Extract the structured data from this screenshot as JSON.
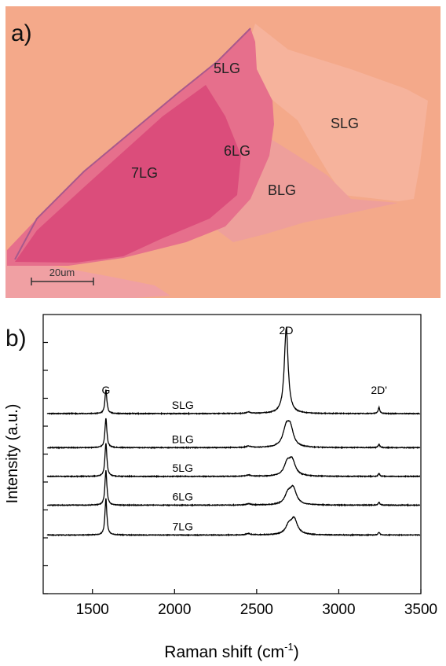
{
  "panel_a": {
    "panel_label": "a)",
    "region_labels": [
      "5LG",
      "SLG",
      "6LG",
      "7LG",
      "BLG"
    ],
    "scale_bar_label": "20um",
    "colors": {
      "substrate": "#f4a98a",
      "thin_layers": "#f6b39c",
      "bilayer": "#ee9f9b",
      "few_layer": "#e66f8c",
      "thick_layer": "#db4d7b"
    }
  },
  "chart_data": {
    "type": "line",
    "panel_label": "b)",
    "xlabel": "Raman shift (cm",
    "xlabel_sup": "-1",
    "xlabel_close": ")",
    "ylabel": "Intensity (a.u.)",
    "xlim": [
      1200,
      3500
    ],
    "x_ticks": [
      1500,
      2000,
      2500,
      3000,
      3500
    ],
    "x_tick_labels": [
      "1500",
      "2000",
      "2500",
      "3000",
      "3500"
    ],
    "y_ticks": [
      0,
      1,
      2,
      3,
      4,
      5,
      6,
      7,
      8,
      9
    ],
    "y_tick_labels": [],
    "ylim": [
      0,
      10
    ],
    "grid": false,
    "legend": "none",
    "line_color": "#000000",
    "peak_labels": [
      {
        "text": "G",
        "x": 1582,
        "y": 7.15
      },
      {
        "text": "2D",
        "x": 2680,
        "y": 9.3
      },
      {
        "text": "2D'",
        "x": 3245,
        "y": 7.15
      }
    ],
    "series": [
      {
        "name": "SLG",
        "label_x": 2050,
        "baseline": 6.45,
        "peaks": [
          {
            "center": 1582,
            "height": 0.85,
            "width": 7
          },
          {
            "center": 2450,
            "height": 0.05,
            "width": 15
          },
          {
            "center": 2680,
            "height": 3.05,
            "width": 14
          },
          {
            "center": 3245,
            "height": 0.22,
            "width": 6
          }
        ]
      },
      {
        "name": "BLG",
        "label_x": 2050,
        "baseline": 5.23,
        "peaks": [
          {
            "center": 1582,
            "height": 1.05,
            "width": 7
          },
          {
            "center": 2450,
            "height": 0.05,
            "width": 15
          },
          {
            "center": 2680,
            "height": 0.65,
            "width": 24
          },
          {
            "center": 2705,
            "height": 0.6,
            "width": 22
          },
          {
            "center": 3245,
            "height": 0.12,
            "width": 6
          }
        ]
      },
      {
        "name": "5LG",
        "label_x": 2050,
        "baseline": 4.2,
        "peaks": [
          {
            "center": 1582,
            "height": 1.2,
            "width": 7
          },
          {
            "center": 2450,
            "height": 0.05,
            "width": 15
          },
          {
            "center": 2685,
            "height": 0.4,
            "width": 22
          },
          {
            "center": 2715,
            "height": 0.55,
            "width": 24
          },
          {
            "center": 3245,
            "height": 0.1,
            "width": 6
          }
        ]
      },
      {
        "name": "6LG",
        "label_x": 2050,
        "baseline": 3.17,
        "peaks": [
          {
            "center": 1582,
            "height": 1.25,
            "width": 7
          },
          {
            "center": 2450,
            "height": 0.05,
            "width": 15
          },
          {
            "center": 2690,
            "height": 0.35,
            "width": 22
          },
          {
            "center": 2722,
            "height": 0.58,
            "width": 24
          },
          {
            "center": 3245,
            "height": 0.1,
            "width": 6
          }
        ]
      },
      {
        "name": "7LG",
        "label_x": 2050,
        "baseline": 2.1,
        "peaks": [
          {
            "center": 1582,
            "height": 1.3,
            "width": 7
          },
          {
            "center": 2450,
            "height": 0.05,
            "width": 15
          },
          {
            "center": 2695,
            "height": 0.3,
            "width": 22
          },
          {
            "center": 2728,
            "height": 0.55,
            "width": 24
          },
          {
            "center": 3245,
            "height": 0.1,
            "width": 6
          }
        ]
      }
    ]
  }
}
